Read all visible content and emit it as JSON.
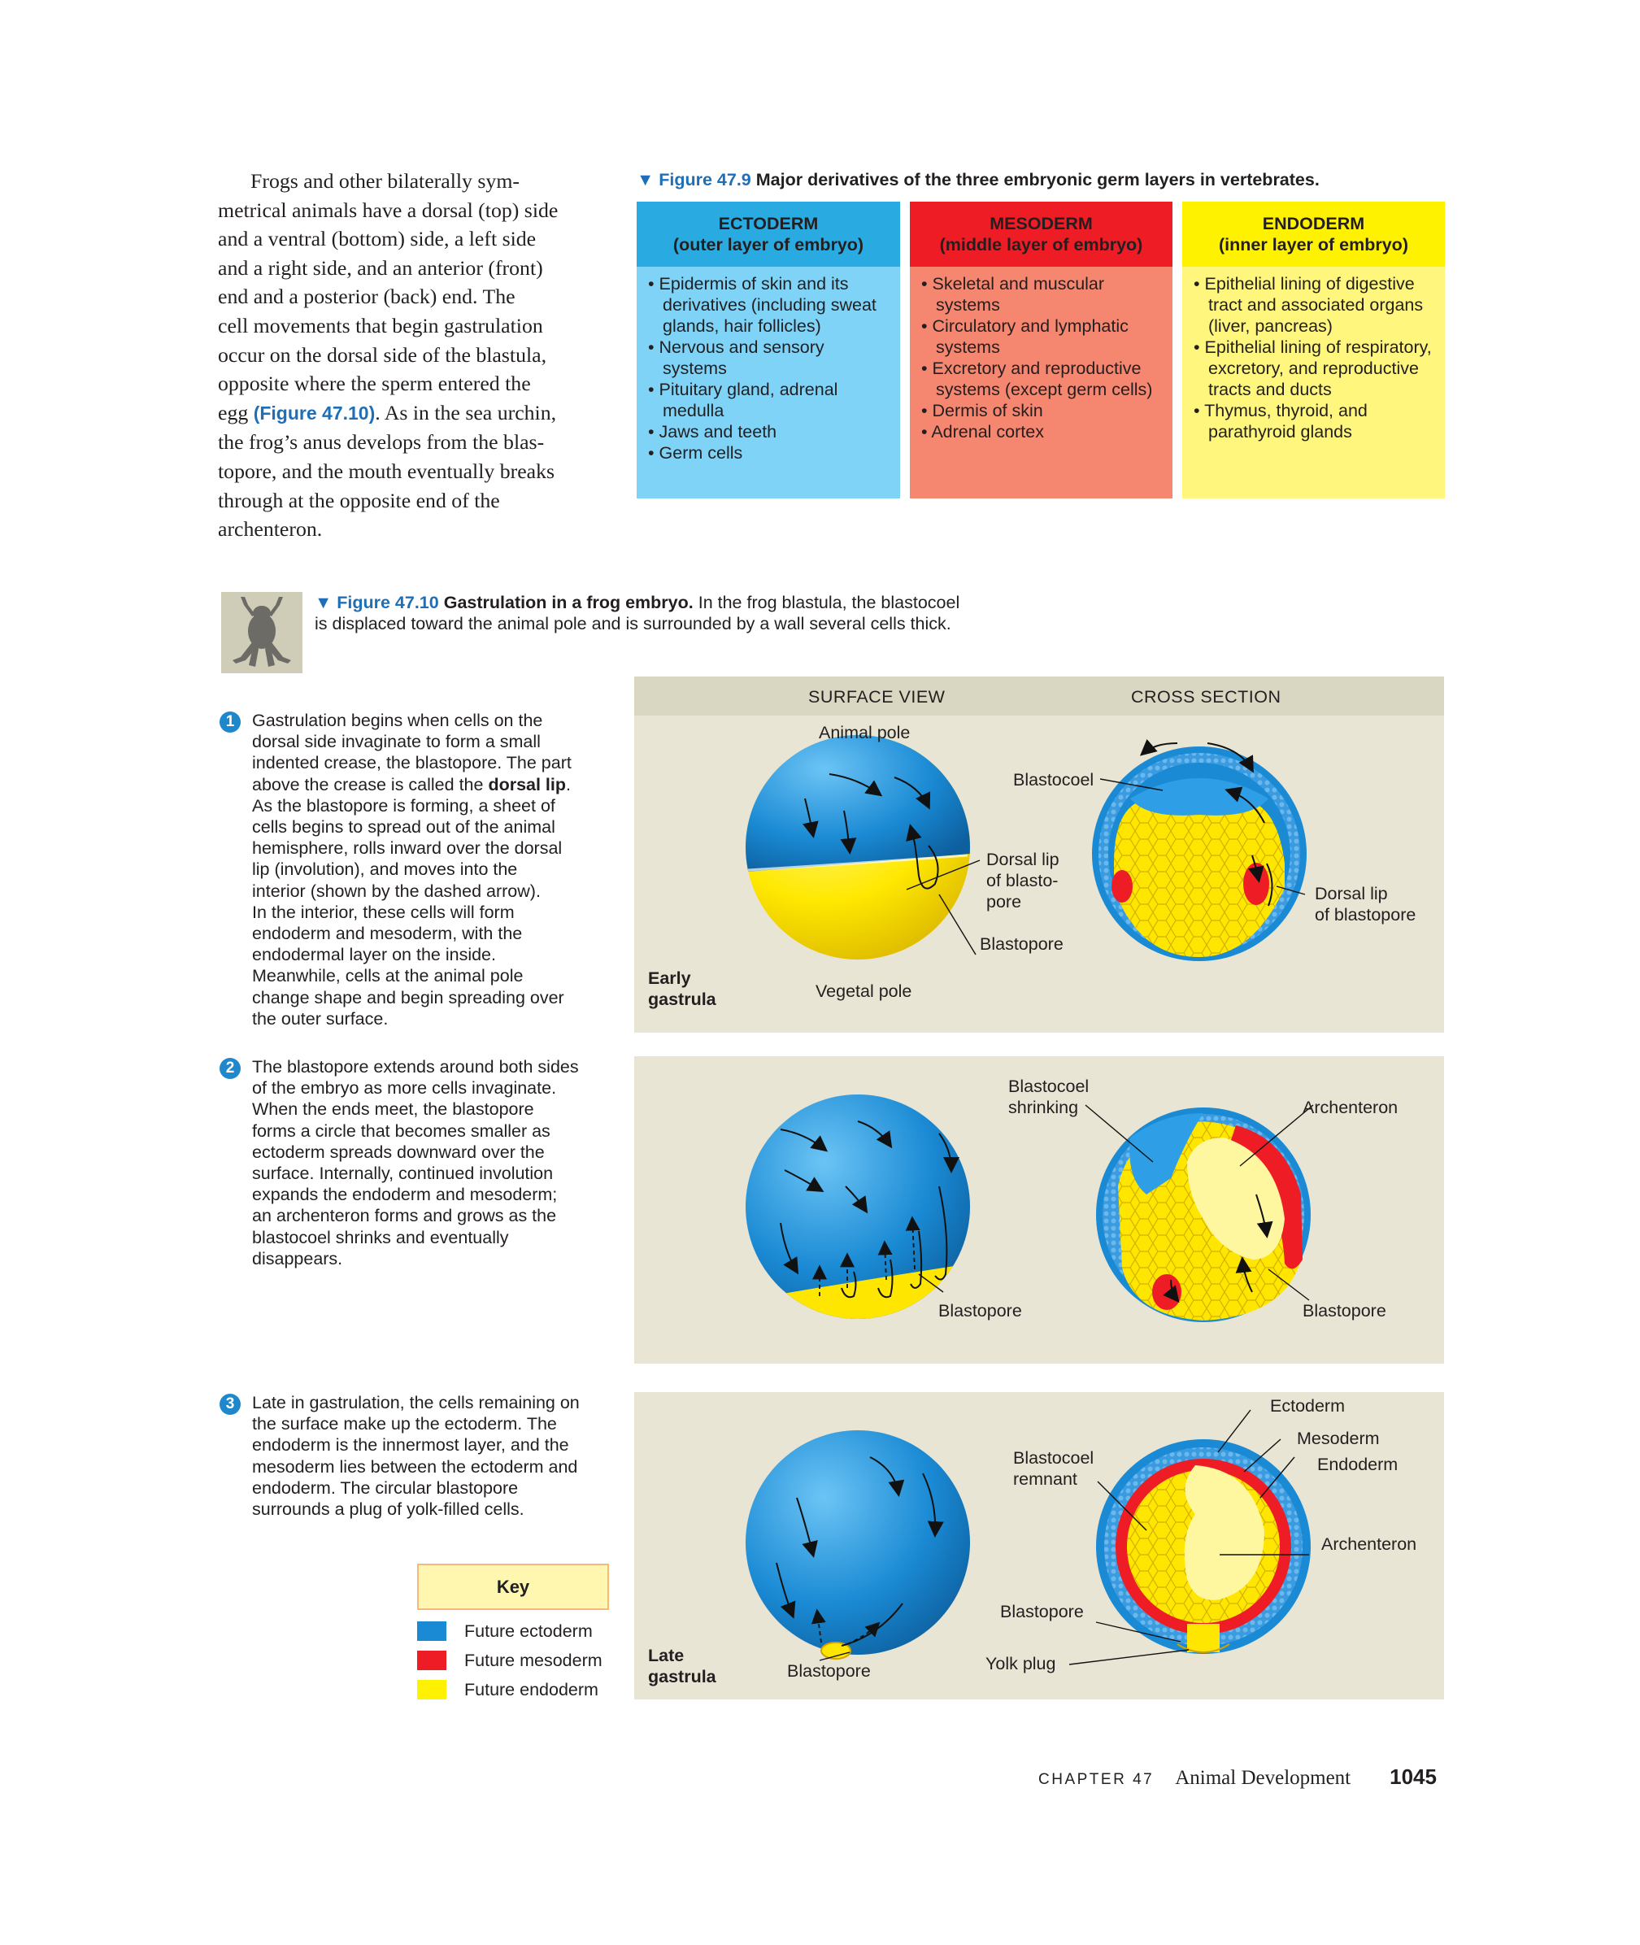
{
  "body_text": {
    "lines": [
      "Frogs and other bilaterally sym-",
      "metrical animals have a dorsal (top) side",
      "and a ventral (bottom) side, a left side",
      "and a right side, and an anterior (front)",
      "end and a posterior (back) end. The",
      "cell movements that begin gastrulation",
      "occur on the dorsal side of the blastula,",
      "opposite where the sperm entered the",
      "egg ",
      "(Figure 47.10)",
      ". As in the sea urchin,",
      "the frog’s anus develops from the blas-",
      "topore, and the mouth eventually breaks",
      "through at the opposite end of the",
      "archenteron."
    ]
  },
  "fig479": {
    "marker": "▼ Figure 47.9",
    "title": "Major derivatives of the three embryonic germ layers in vertebrates.",
    "columns": [
      {
        "head1": "ECTODERM",
        "head2": "(outer layer of embryo)",
        "head_color": "#29abe2",
        "body_color": "#7fd3f7",
        "items": [
          "Epidermis of skin and its derivatives (including sweat glands, hair follicles)",
          "Nervous and sensory systems",
          "Pituitary gland, adrenal medulla",
          "Jaws and teeth",
          "Germ cells"
        ]
      },
      {
        "head1": "MESODERM",
        "head2": "(middle layer of embryo)",
        "head_color": "#ee1c24",
        "body_color": "#f58670",
        "items": [
          "Skeletal and muscular systems",
          "Circulatory and lymphatic systems",
          "Excretory and reproductive systems (except germ cells)",
          "Dermis of skin",
          "Adrenal cortex"
        ]
      },
      {
        "head1": "ENDODERM",
        "head2": "(inner layer of embryo)",
        "head_color": "#fff200",
        "body_color": "#fff77d",
        "items": [
          "Epithelial lining of digestive tract and associated organs (liver, pancreas)",
          "Epithelial lining of respiratory, excretory, and reproductive tracts and ducts",
          "Thymus, thyroid, and parathyroid glands"
        ]
      }
    ]
  },
  "fig4710": {
    "marker": "▼ Figure 47.10",
    "title": "Gastrulation in a frog embryo.",
    "caption1": "In the frog blastula, the blastocoel",
    "caption2": "is displaced toward the animal pole and is surrounded by a wall several cells thick.",
    "frog_icon": "frog-silhouette-icon"
  },
  "steps": [
    {
      "num": "1",
      "text": "Gastrulation begins when cells on the\ndorsal side invaginate to form a small\nindented crease, the blastopore. The part\nabove the crease is called the ",
      "bold": "dorsal lip",
      "text2": ".\nAs the blastopore is forming, a sheet of\ncells begins to spread out of the animal\nhemisphere, rolls inward over the dorsal\nlip (involution), and moves into the\ninterior (shown by the dashed arrow).\nIn the interior, these cells will form\nendoderm and mesoderm, with the\nendodermal layer on the inside.\nMeanwhile, cells at the animal pole\nchange shape and begin spreading over\nthe outer surface."
    },
    {
      "num": "2",
      "text": "The blastopore extends around both sides\nof the embryo as more cells invaginate.\nWhen the ends meet, the blastopore\nforms a circle that becomes smaller as\nectoderm spreads downward over the\nsurface. Internally, continued involution\nexpands the endoderm and mesoderm;\nan archenteron forms and grows as the\nblastocoel shrinks and eventually\ndisappears."
    },
    {
      "num": "3",
      "text": "Late in gastrulation, the cells remaining on\nthe surface make up the ectoderm. The\nendoderm is the innermost layer, and the\nmesoderm lies between the ectoderm and\nendoderm. The circular blastopore\nsurrounds a plug of yolk-filled cells."
    }
  ],
  "panels": {
    "header_surface": "SURFACE VIEW",
    "header_cross": "CROSS SECTION",
    "p1": {
      "animal_pole": "Animal pole",
      "vegetal_pole": "Vegetal pole",
      "blastocoel": "Blastocoel",
      "dorsal_lip_blastopore_short": "Dorsal lip\nof blasto-\npore",
      "blastopore": "Blastopore",
      "dorsal_lip_blastopore": "Dorsal lip\nof blastopore",
      "stage": "Early\ngastrula"
    },
    "p2": {
      "blastocoel_shrinking": "Blastocoel\nshrinking",
      "archenteron": "Archenteron",
      "blastopore_surface": "Blastopore",
      "blastopore_cross": "Blastopore"
    },
    "p3": {
      "ectoderm": "Ectoderm",
      "mesoderm": "Mesoderm",
      "endoderm": "Endoderm",
      "blastocoel_remnant": "Blastocoel\nremnant",
      "archenteron": "Archenteron",
      "blastopore_cross": "Blastopore",
      "yolk_plug": "Yolk plug",
      "blastopore_surface": "Blastopore",
      "stage": "Late\ngastrula"
    }
  },
  "key": {
    "title": "Key",
    "items": [
      {
        "label": "Future ectoderm",
        "color": "#1a8ad4"
      },
      {
        "label": "Future mesoderm",
        "color": "#ee1c24"
      },
      {
        "label": "Future endoderm",
        "color": "#fff200"
      }
    ]
  },
  "footer": {
    "chapter": "CHAPTER 47",
    "title": "Animal Development",
    "page": "1045"
  }
}
